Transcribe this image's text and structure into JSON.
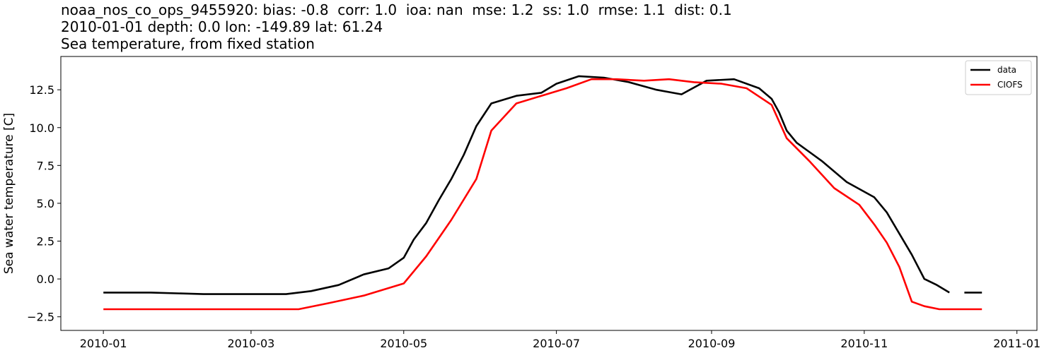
{
  "title": {
    "line1": "noaa_nos_co_ops_9455920: bias: -0.8  corr: 1.0  ioa: nan  mse: 1.2  ss: 1.0  rmse: 1.1  dist: 0.1",
    "line2": "2010-01-01 depth: 0.0 lon: -149.89 lat: 61.24",
    "line3": "Sea temperature, from fixed station"
  },
  "chart_data": {
    "type": "line",
    "xlabel": "",
    "ylabel": "Sea water temperature [C]",
    "xlim": [
      "2009-12-15",
      "2011-01-09"
    ],
    "ylim": [
      -3.4,
      14.7
    ],
    "x_ticks": [
      "2010-01",
      "2010-03",
      "2010-05",
      "2010-07",
      "2010-09",
      "2010-11",
      "2011-01"
    ],
    "y_ticks": [
      -2.5,
      0.0,
      2.5,
      5.0,
      7.5,
      10.0,
      12.5
    ],
    "y_tick_labels": [
      "−2.5",
      "0.0",
      "2.5",
      "5.0",
      "7.5",
      "10.0",
      "12.5"
    ],
    "legend_position": "top-right",
    "grid": false,
    "series": [
      {
        "name": "data",
        "color": "#000000",
        "points": [
          [
            "2010-01-01",
            -0.9
          ],
          [
            "2010-01-20",
            -0.9
          ],
          [
            "2010-02-10",
            -1.0
          ],
          [
            "2010-03-01",
            -1.0
          ],
          [
            "2010-03-15",
            -1.0
          ],
          [
            "2010-03-25",
            -0.8
          ],
          [
            "2010-04-05",
            -0.4
          ],
          [
            "2010-04-15",
            0.3
          ],
          [
            "2010-04-25",
            0.7
          ],
          [
            "2010-05-01",
            1.4
          ],
          [
            "2010-05-05",
            2.6
          ],
          [
            "2010-05-10",
            3.7
          ],
          [
            "2010-05-15",
            5.2
          ],
          [
            "2010-05-20",
            6.6
          ],
          [
            "2010-05-25",
            8.2
          ],
          [
            "2010-05-30",
            10.1
          ],
          [
            "2010-06-05",
            11.6
          ],
          [
            "2010-06-15",
            12.1
          ],
          [
            "2010-06-25",
            12.3
          ],
          [
            "2010-07-01",
            12.9
          ],
          [
            "2010-07-10",
            13.4
          ],
          [
            "2010-07-20",
            13.3
          ],
          [
            "2010-07-30",
            13.0
          ],
          [
            "2010-08-10",
            12.5
          ],
          [
            "2010-08-20",
            12.2
          ],
          [
            "2010-08-30",
            13.1
          ],
          [
            "2010-09-10",
            13.2
          ],
          [
            "2010-09-20",
            12.6
          ],
          [
            "2010-09-25",
            11.9
          ],
          [
            "2010-09-28",
            11.0
          ],
          [
            "2010-10-01",
            9.8
          ],
          [
            "2010-10-05",
            9.0
          ],
          [
            "2010-10-15",
            7.8
          ],
          [
            "2010-10-25",
            6.4
          ],
          [
            "2010-11-05",
            5.4
          ],
          [
            "2010-11-10",
            4.4
          ],
          [
            "2010-11-15",
            3.0
          ],
          [
            "2010-11-20",
            1.6
          ],
          [
            "2010-11-25",
            0.0
          ],
          [
            "2010-11-30",
            -0.4
          ],
          [
            "2010-12-05",
            -0.9
          ]
        ],
        "points_after_gap": [
          [
            "2010-12-11",
            -0.9
          ],
          [
            "2010-12-18",
            -0.9
          ]
        ]
      },
      {
        "name": "CIOFS",
        "color": "#ff0000",
        "points": [
          [
            "2010-01-01",
            -2.0
          ],
          [
            "2010-02-01",
            -2.0
          ],
          [
            "2010-03-01",
            -2.0
          ],
          [
            "2010-03-20",
            -2.0
          ],
          [
            "2010-04-01",
            -1.6
          ],
          [
            "2010-04-15",
            -1.1
          ],
          [
            "2010-05-01",
            -0.3
          ],
          [
            "2010-05-10",
            1.5
          ],
          [
            "2010-05-20",
            3.9
          ],
          [
            "2010-05-30",
            6.6
          ],
          [
            "2010-06-05",
            9.8
          ],
          [
            "2010-06-15",
            11.6
          ],
          [
            "2010-06-25",
            12.1
          ],
          [
            "2010-07-05",
            12.6
          ],
          [
            "2010-07-15",
            13.2
          ],
          [
            "2010-07-25",
            13.2
          ],
          [
            "2010-08-05",
            13.1
          ],
          [
            "2010-08-15",
            13.2
          ],
          [
            "2010-08-25",
            13.0
          ],
          [
            "2010-09-05",
            12.9
          ],
          [
            "2010-09-15",
            12.6
          ],
          [
            "2010-09-25",
            11.5
          ],
          [
            "2010-10-01",
            9.3
          ],
          [
            "2010-10-10",
            7.8
          ],
          [
            "2010-10-20",
            6.0
          ],
          [
            "2010-10-30",
            4.9
          ],
          [
            "2010-11-05",
            3.6
          ],
          [
            "2010-11-10",
            2.4
          ],
          [
            "2010-11-15",
            0.8
          ],
          [
            "2010-11-20",
            -1.5
          ],
          [
            "2010-11-25",
            -1.8
          ],
          [
            "2010-12-01",
            -2.0
          ],
          [
            "2010-12-18",
            -2.0
          ]
        ]
      }
    ]
  }
}
